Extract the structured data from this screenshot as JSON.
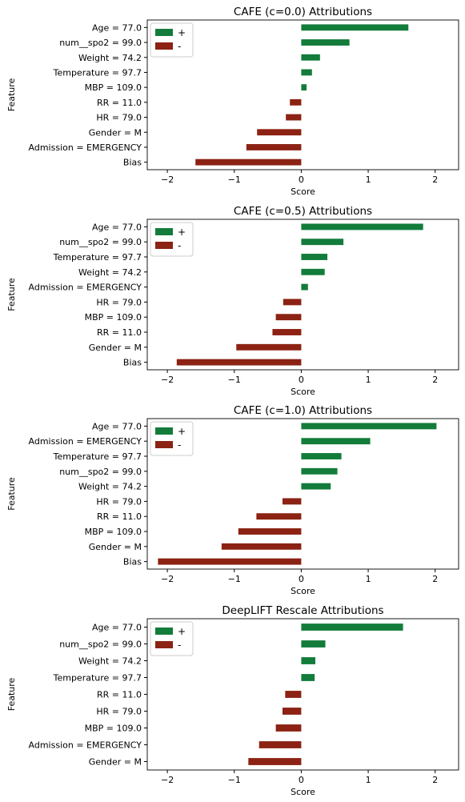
{
  "chart_data": [
    {
      "type": "bar",
      "orientation": "horizontal",
      "title": "CAFE (c=0.0) Attributions",
      "xlabel": "Score",
      "ylabel": "Feature",
      "xlim": [
        -2.3,
        2.35
      ],
      "xticks": [
        -2,
        -1,
        0,
        1,
        2
      ],
      "xtick_labels": [
        "−2",
        "−1",
        "0",
        "1",
        "2"
      ],
      "grid": false,
      "legend": {
        "position": "top-left",
        "entries": [
          "+",
          "-"
        ]
      },
      "categories": [
        "Age = 77.0",
        "num__spo2 = 99.0",
        "Weight = 74.2",
        "Temperature = 97.7",
        "MBP = 109.0",
        "RR = 11.0",
        "HR = 79.0",
        "Gender = M",
        "Admission = EMERGENCY",
        "Bias"
      ],
      "values": [
        1.6,
        0.72,
        0.28,
        0.16,
        0.08,
        -0.17,
        -0.23,
        -0.66,
        -0.82,
        -1.58
      ]
    },
    {
      "type": "bar",
      "orientation": "horizontal",
      "title": "CAFE (c=0.5) Attributions",
      "xlabel": "Score",
      "ylabel": "Feature",
      "xlim": [
        -2.3,
        2.35
      ],
      "xticks": [
        -2,
        -1,
        0,
        1,
        2
      ],
      "xtick_labels": [
        "−2",
        "−1",
        "0",
        "1",
        "2"
      ],
      "grid": false,
      "legend": {
        "position": "top-left",
        "entries": [
          "+",
          "-"
        ]
      },
      "categories": [
        "Age = 77.0",
        "num__spo2 = 99.0",
        "Temperature = 97.7",
        "Weight = 74.2",
        "Admission = EMERGENCY",
        "HR = 79.0",
        "MBP = 109.0",
        "RR = 11.0",
        "Gender = M",
        "Bias"
      ],
      "values": [
        1.82,
        0.63,
        0.39,
        0.35,
        0.1,
        -0.27,
        -0.38,
        -0.43,
        -0.97,
        -1.86
      ]
    },
    {
      "type": "bar",
      "orientation": "horizontal",
      "title": "CAFE (c=1.0) Attributions",
      "xlabel": "Score",
      "ylabel": "Feature",
      "xlim": [
        -2.3,
        2.35
      ],
      "xticks": [
        -2,
        -1,
        0,
        1,
        2
      ],
      "xtick_labels": [
        "−2",
        "−1",
        "0",
        "1",
        "2"
      ],
      "grid": false,
      "legend": {
        "position": "top-left",
        "entries": [
          "+",
          "-"
        ]
      },
      "categories": [
        "Age = 77.0",
        "Admission = EMERGENCY",
        "Temperature = 97.7",
        "num__spo2 = 99.0",
        "Weight = 74.2",
        "HR = 79.0",
        "RR = 11.0",
        "MBP = 109.0",
        "Gender = M",
        "Bias"
      ],
      "values": [
        2.02,
        1.03,
        0.6,
        0.54,
        0.44,
        -0.28,
        -0.67,
        -0.94,
        -1.19,
        -2.14
      ]
    },
    {
      "type": "bar",
      "orientation": "horizontal",
      "title": "DeepLIFT Rescale Attributions",
      "xlabel": "Score",
      "ylabel": "Feature",
      "xlim": [
        -2.3,
        2.35
      ],
      "xticks": [
        -2,
        -1,
        0,
        1,
        2
      ],
      "xtick_labels": [
        "−2",
        "−1",
        "0",
        "1",
        "2"
      ],
      "grid": false,
      "legend": {
        "position": "top-left",
        "entries": [
          "+",
          "-"
        ]
      },
      "categories": [
        "Age = 77.0",
        "num__spo2 = 99.0",
        "Weight = 74.2",
        "Temperature = 97.7",
        "RR = 11.0",
        "HR = 79.0",
        "MBP = 109.0",
        "Admission = EMERGENCY",
        "Gender = M"
      ],
      "values": [
        1.52,
        0.36,
        0.21,
        0.2,
        -0.24,
        -0.28,
        -0.38,
        -0.63,
        -0.79
      ]
    }
  ],
  "colors": {
    "positive": "#137c3b",
    "negative": "#8b2213"
  }
}
